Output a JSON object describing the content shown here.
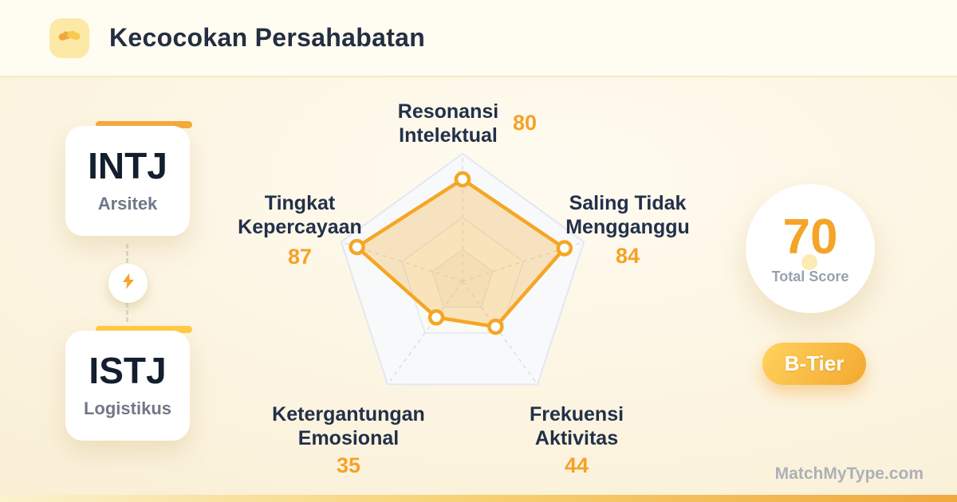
{
  "header": {
    "title": "Kecocokan Persahabatan",
    "logo_icon": "handshake-icon",
    "logo_bg": "#FCE9A6"
  },
  "pair": {
    "type1": {
      "code": "INTJ",
      "name": "Arsitek",
      "accent_color": "#F6A93C"
    },
    "type2": {
      "code": "ISTJ",
      "name": "Logistikus",
      "accent_color": "#FFCB45"
    },
    "connector_icon": "lightning-icon"
  },
  "chart_data": {
    "type": "radar",
    "categories": [
      "Resonansi\nIntelektual",
      "Saling Tidak\nMengganggu",
      "Frekuensi\nAktivitas",
      "Ketergantungan\nEmosional",
      "Tingkat\nKepercayaan"
    ],
    "values": [
      80,
      84,
      44,
      35,
      87
    ],
    "max": 100,
    "rings": [
      1,
      0.5,
      0.25
    ],
    "start_axis": "top",
    "direction": "clockwise",
    "grid_color": "#E3E7EF",
    "spoke_color": "#D9DEE8",
    "stroke_color": "#F5A623",
    "fill_color": "rgba(245,166,35,0.27)",
    "marker": "ring",
    "legend": "none"
  },
  "score": {
    "value": 70,
    "label": "Total Score",
    "value_color": "#F5A427"
  },
  "tier": {
    "label": "B-Tier",
    "gradient": [
      "#FFD35E",
      "#F3A82F"
    ]
  },
  "watermark": {
    "text": "MatchMyType.com"
  }
}
